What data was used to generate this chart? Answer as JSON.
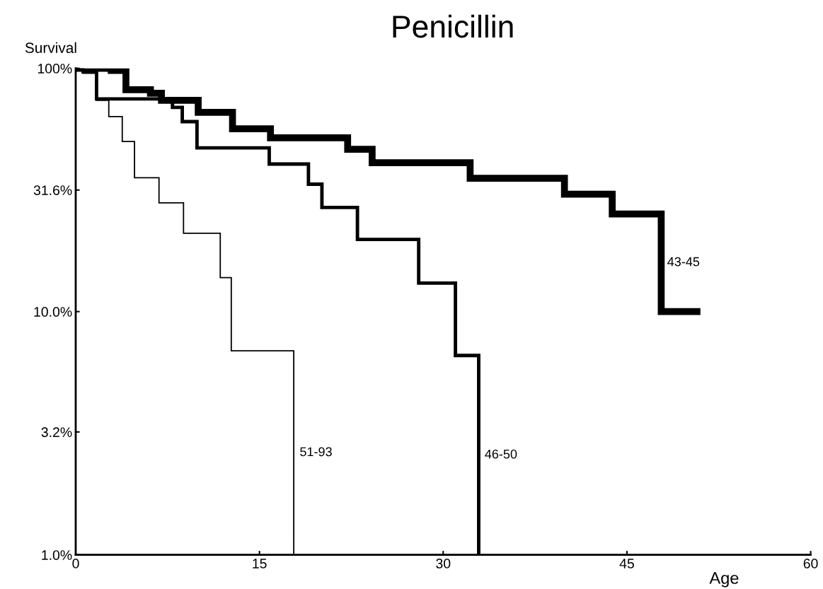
{
  "chart_data": {
    "type": "step",
    "title": "Penicillin",
    "xlabel": "Age",
    "ylabel": "Survival",
    "log": "y",
    "xlim": [
      0,
      60
    ],
    "xticks": [
      0,
      15,
      30,
      45,
      60
    ],
    "ylim": [
      1,
      100
    ],
    "yticks": [
      {
        "value": 1,
        "label": "1.0%"
      },
      {
        "value": 3.2,
        "label": "3.2%"
      },
      {
        "value": 10,
        "label": "10.0%"
      },
      {
        "value": 31.6,
        "label": "31.6%"
      },
      {
        "value": 100,
        "label": "100%"
      }
    ],
    "series": [
      {
        "name": "43-45",
        "color": "#000000",
        "x": [
          0,
          2.9,
          4.1,
          6.1,
          7.0,
          10.0,
          12.8,
          15.9,
          22.2,
          24.2,
          32.2,
          39.9,
          43.8,
          47.8,
          51.0
        ],
        "values": [
          100,
          98,
          81.7,
          79,
          73.9,
          65.9,
          56.4,
          51.8,
          46.5,
          40.9,
          35.3,
          30.4,
          25.2,
          10.0,
          10.0
        ]
      },
      {
        "name": "46-50",
        "color": "#000000",
        "x": [
          0,
          0.6,
          1.7,
          7.9,
          8.7,
          9.9,
          15.8,
          19.0,
          20.1,
          23.0,
          28.0,
          31.0,
          32.9
        ],
        "values": [
          100,
          96.7,
          74.9,
          69.1,
          60.4,
          47.1,
          40.4,
          33.4,
          26.8,
          19.8,
          13.1,
          6.6,
          1.0
        ]
      },
      {
        "name": "51-93",
        "color": "#000000",
        "x": [
          0,
          0.6,
          1.7,
          2.7,
          3.8,
          4.8,
          6.8,
          8.8,
          11.8,
          12.7,
          17.8
        ],
        "values": [
          100,
          95.4,
          73.9,
          63.3,
          50.0,
          35.5,
          28.0,
          21.0,
          13.8,
          6.9,
          1.0
        ]
      }
    ]
  }
}
